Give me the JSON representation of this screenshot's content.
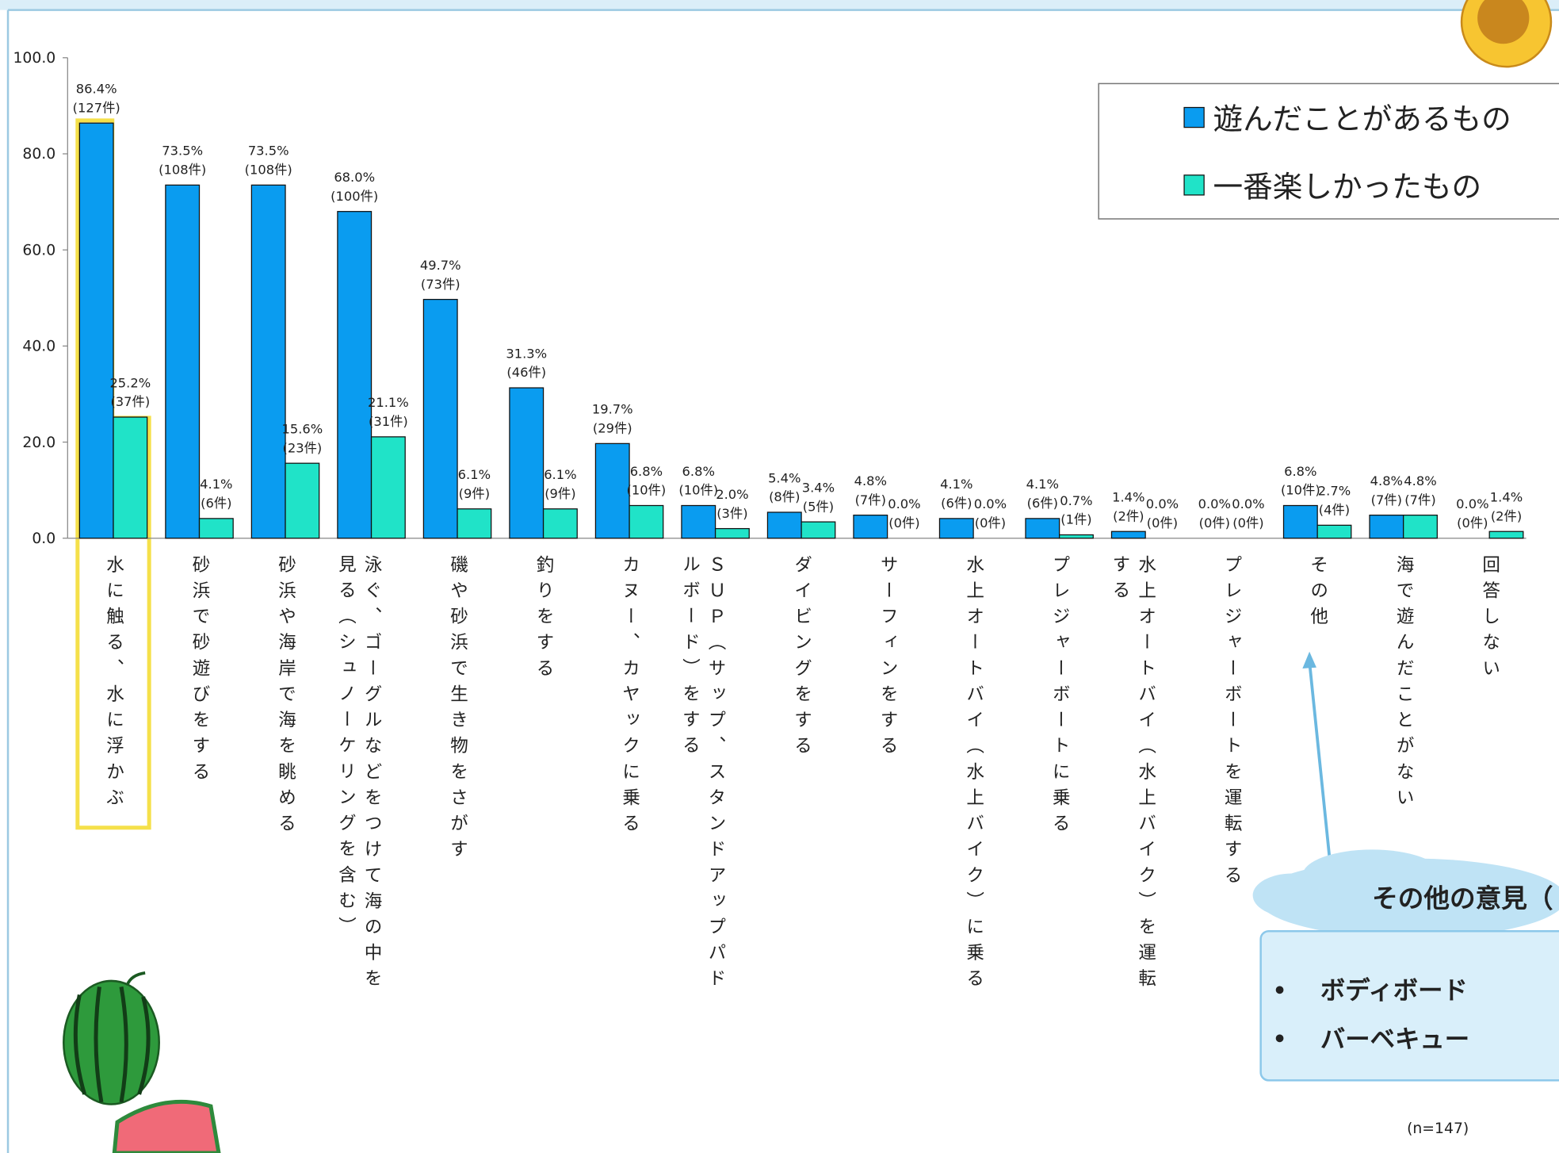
{
  "chart_data": {
    "type": "bar",
    "categories": [
      "水に触る、水に浮かぶ",
      "砂浜で砂遊びをする",
      "砂浜や海岸で海を眺める",
      "泳ぐ、ゴーグルなどをつけて海の中を見る（シュノーケリングを含む）",
      "磯や砂浜で生き物をさがす",
      "釣りをする",
      "カヌー、カヤックに乗る",
      "ＳＵＰ（サップ、スタンドアップパドルボード）をする",
      "ダイビングをする",
      "サーフィンをする",
      "水上オートバイ（水上バイク）に乗る",
      "プレジャーボートに乗る",
      "水上オートバイ（水上バイク）を運転する",
      "プレジャーボートを運転する",
      "その他",
      "海で遊んだことがない",
      "回答しない"
    ],
    "series": [
      {
        "name": "遊んだことがあるもの",
        "color": "#0a9cf0",
        "values": [
          86.4,
          73.5,
          73.5,
          68.0,
          49.7,
          31.3,
          19.7,
          6.8,
          5.4,
          4.8,
          4.1,
          4.1,
          1.4,
          0.0,
          6.8,
          4.8,
          0.0
        ],
        "value_labels": [
          "86.4%",
          "73.5%",
          "73.5%",
          "68.0%",
          "49.7%",
          "31.3%",
          "19.7%",
          "6.8%",
          "5.4%",
          "4.8%",
          "4.1%",
          "4.1%",
          "1.4%",
          "0.0%",
          "6.8%",
          "4.8%",
          "0.0%"
        ],
        "count_labels": [
          "(127件)",
          "(108件)",
          "(108件)",
          "(100件)",
          "(73件)",
          "(46件)",
          "(29件)",
          "(10件)",
          "(8件)",
          "(7件)",
          "(6件)",
          "(6件)",
          "(2件)",
          "(0件)",
          "(10件)",
          "(7件)",
          "(0件)"
        ]
      },
      {
        "name": "一番楽しかったもの",
        "color": "#20e3c8",
        "values": [
          25.2,
          4.1,
          15.6,
          21.1,
          6.1,
          6.1,
          6.8,
          2.0,
          3.4,
          0.0,
          0.0,
          0.7,
          0.0,
          0.0,
          2.7,
          4.8,
          1.4
        ],
        "value_labels": [
          "25.2%",
          "4.1%",
          "15.6%",
          "21.1%",
          "6.1%",
          "6.1%",
          "6.8%",
          "2.0%",
          "3.4%",
          "0.0%",
          "0.0%",
          "0.7%",
          "0.0%",
          "0.0%",
          "2.7%",
          "4.8%",
          "1.4%"
        ],
        "count_labels": [
          "(37件)",
          "(6件)",
          "(23件)",
          "(31件)",
          "(9件)",
          "(9件)",
          "(10件)",
          "(3件)",
          "(5件)",
          "(0件)",
          "(0件)",
          "(1件)",
          "(0件)",
          "(0件)",
          "(4件)",
          "(7件)",
          "(2件)"
        ]
      }
    ],
    "ylim": [
      0,
      100
    ],
    "yticks": [
      {
        "value": 0,
        "label": "0.0"
      },
      {
        "value": 20,
        "label": "20.0"
      },
      {
        "value": 40,
        "label": "40.0"
      },
      {
        "value": 60,
        "label": "60.0"
      },
      {
        "value": 80,
        "label": "80.0"
      },
      {
        "value": 100,
        "label": "100.0"
      }
    ],
    "grid": false,
    "legend": "upper right",
    "note": "(n=147)",
    "callout": {
      "title": "その他の意見（",
      "items": [
        "ボディボード",
        "バーベキュー"
      ]
    }
  }
}
